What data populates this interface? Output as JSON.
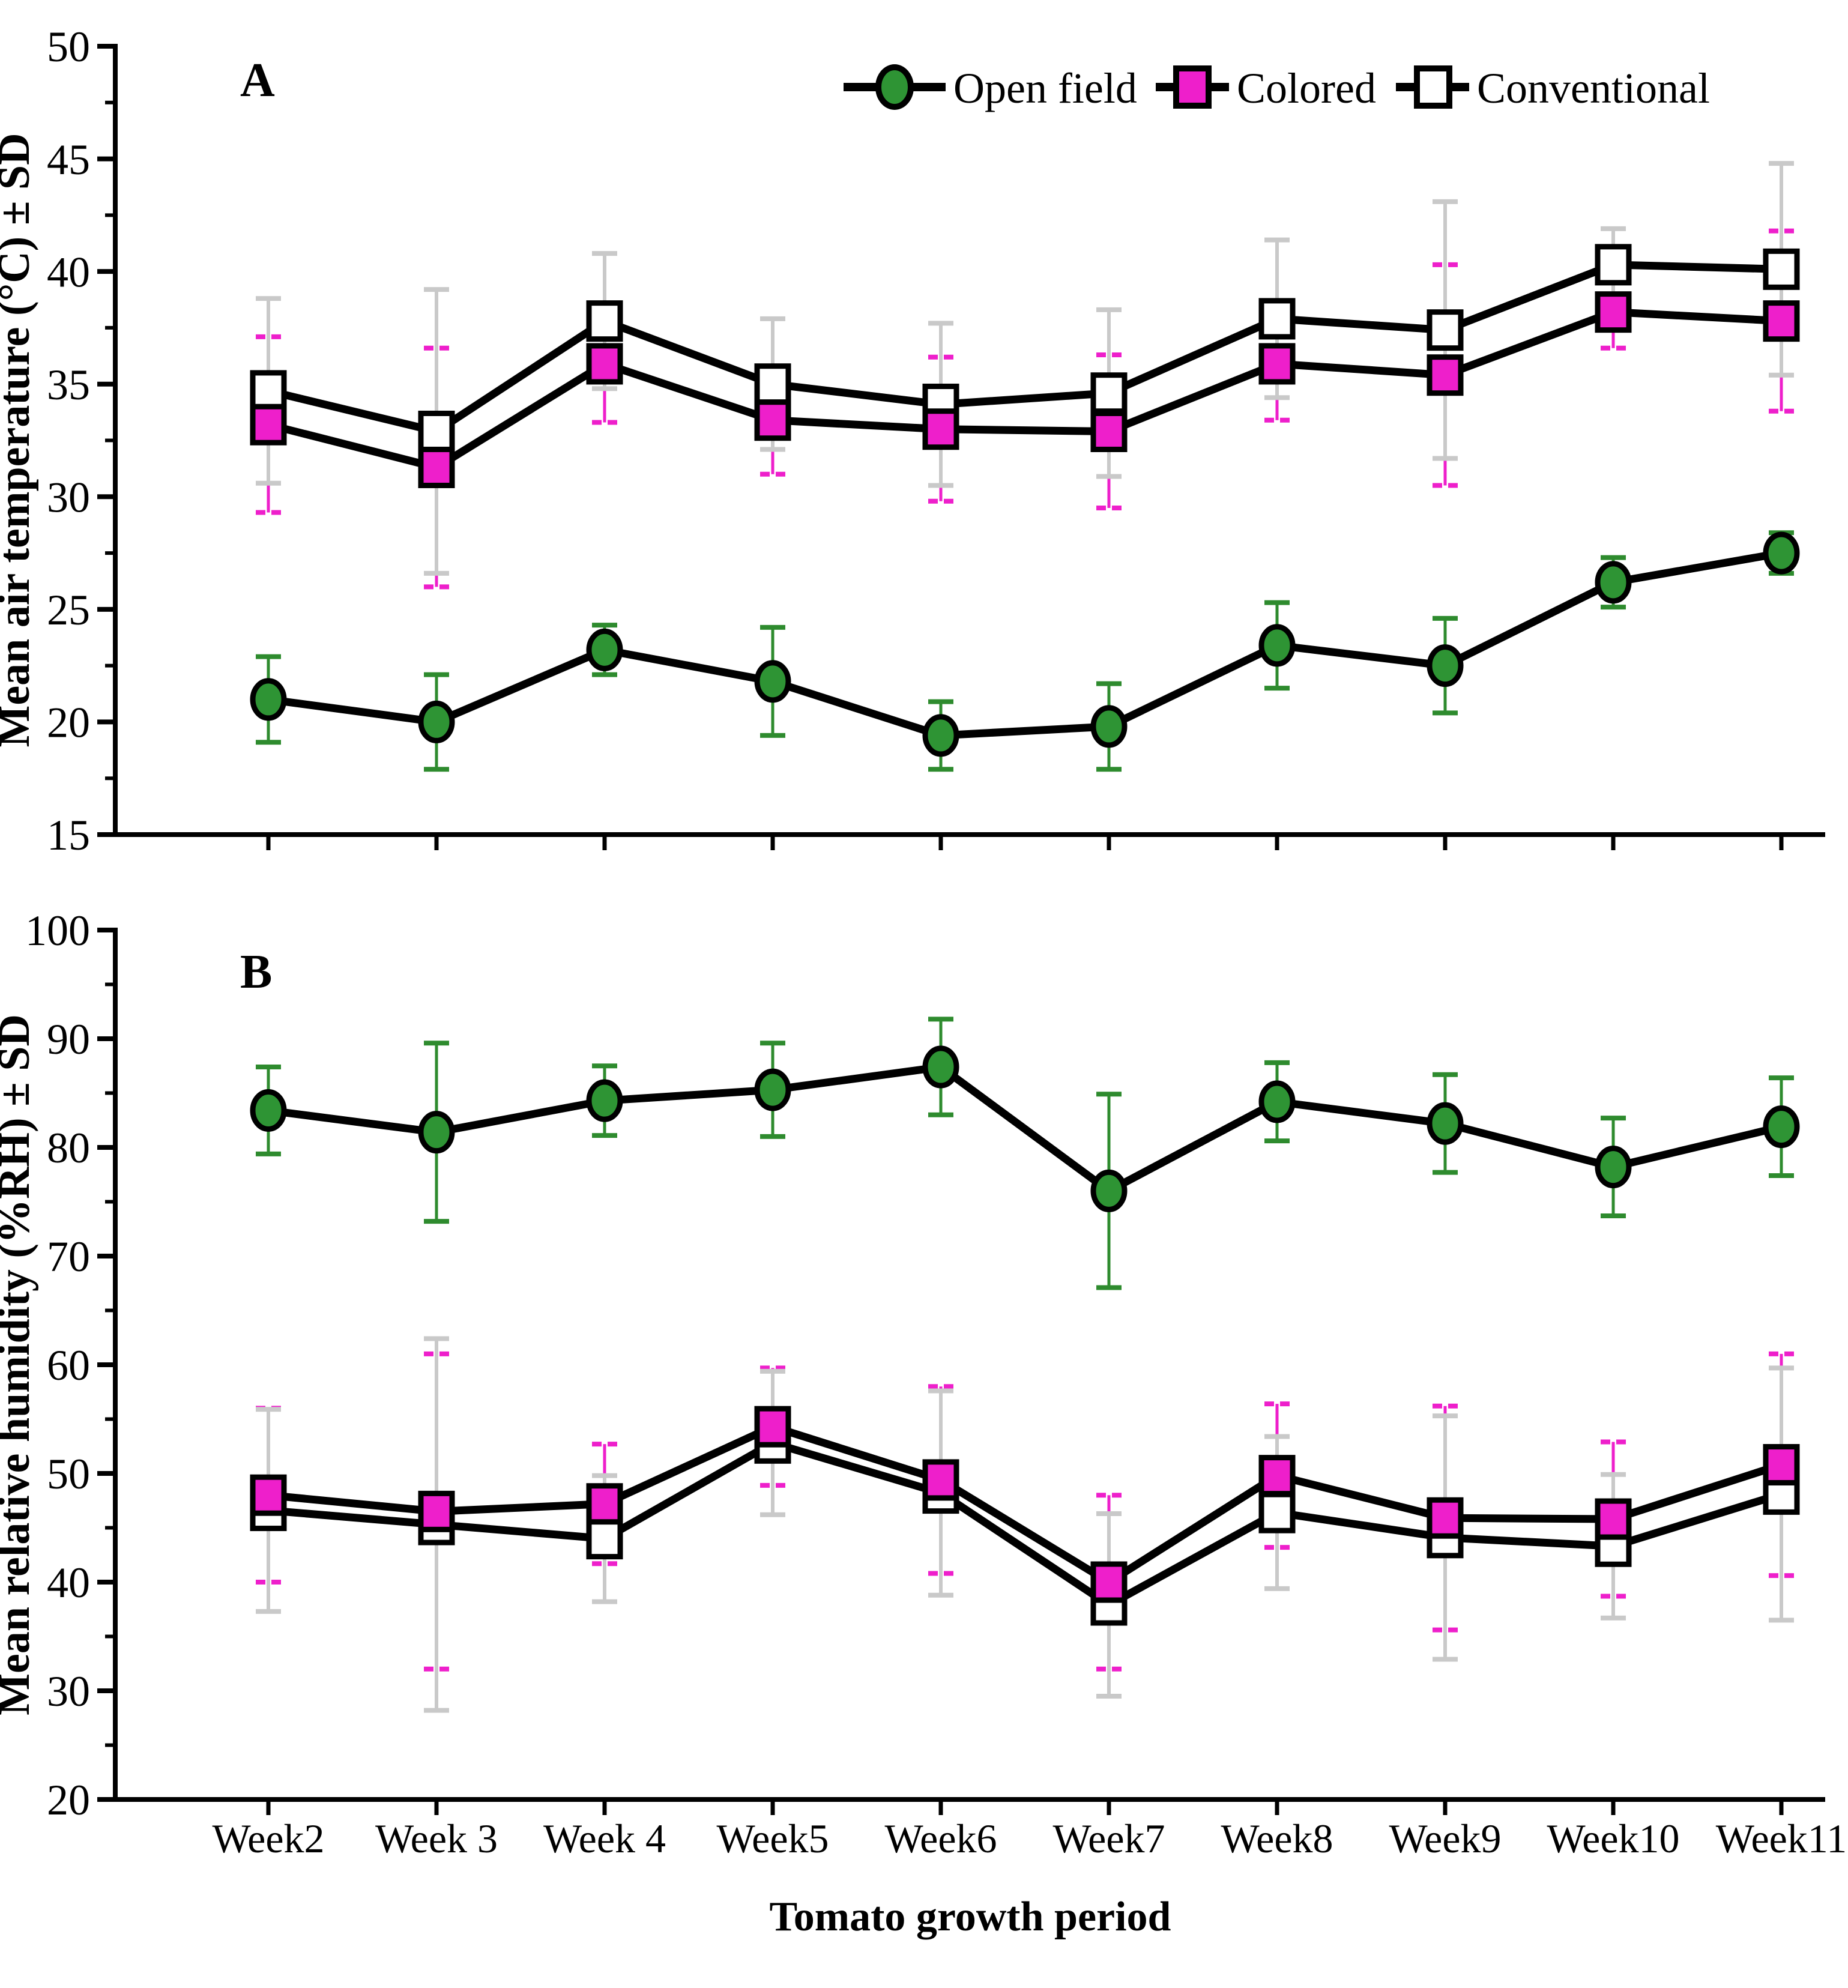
{
  "page": {
    "background": "#ffffff"
  },
  "legend": {
    "items": [
      {
        "label": "Open field",
        "marker": "circle",
        "fill": "#2e9434"
      },
      {
        "label": "Colored",
        "marker": "square",
        "fill": "#ee1fcb"
      },
      {
        "label": "Conventional",
        "marker": "square",
        "fill": "#ffffff"
      }
    ]
  },
  "x_axis": {
    "title": "Tomato growth period",
    "categories": [
      "Week2",
      "Week 3",
      "Week 4",
      "Week5",
      "Week6",
      "Week7",
      "Week8",
      "Week9",
      "Week10",
      "Week11"
    ]
  },
  "style": {
    "series_line_color": "#000000",
    "conventional_whisker_color": "#c9c9c9",
    "colored_color": "#ee1fcb",
    "open_field_color": "#2e9434",
    "open_field_whisker_color": "#2e8b2e"
  },
  "chart_data": [
    {
      "type": "line",
      "panel_label": "A",
      "title": "",
      "xlabel": "Tomato growth period",
      "ylabel": "Mean air temperature (°C) ± SD",
      "ylim": [
        15,
        50
      ],
      "yticks": [
        15,
        20,
        25,
        30,
        35,
        40,
        45,
        50
      ],
      "yminor_step": 2.5,
      "grid": false,
      "legend_position": "top",
      "error_bars": "± SD",
      "categories": [
        "Week2",
        "Week 3",
        "Week 4",
        "Week5",
        "Week6",
        "Week7",
        "Week8",
        "Week9",
        "Week10",
        "Week11"
      ],
      "series": [
        {
          "name": "Conventional",
          "marker": "square",
          "fill": "#ffffff",
          "whisker": "#c9c9c9",
          "cap_style": "solid",
          "values": [
            34.7,
            32.9,
            37.8,
            35.0,
            34.1,
            34.6,
            37.9,
            37.4,
            40.3,
            40.1
          ],
          "sd": [
            4.1,
            6.3,
            3.0,
            2.9,
            3.6,
            3.7,
            3.5,
            5.7,
            1.6,
            4.7
          ]
        },
        {
          "name": "Colored",
          "marker": "square",
          "fill": "#ee1fcb",
          "whisker": "#ee1fcb",
          "cap_style": "dashed",
          "values": [
            33.2,
            31.3,
            35.9,
            33.4,
            33.0,
            32.9,
            35.9,
            35.4,
            38.2,
            37.8
          ],
          "sd": [
            3.9,
            5.3,
            2.6,
            2.4,
            3.2,
            3.4,
            2.5,
            4.9,
            1.6,
            4.0
          ]
        },
        {
          "name": "Open field",
          "marker": "circle",
          "fill": "#2e9434",
          "whisker": "#2e8b2e",
          "cap_style": "solid",
          "values": [
            21.0,
            20.0,
            23.2,
            21.8,
            19.4,
            19.8,
            23.4,
            22.5,
            26.2,
            27.5
          ],
          "sd": [
            1.9,
            2.1,
            1.1,
            2.4,
            1.5,
            1.9,
            1.9,
            2.1,
            1.1,
            0.9
          ]
        }
      ]
    },
    {
      "type": "line",
      "panel_label": "B",
      "title": "",
      "xlabel": "Tomato growth period",
      "ylabel": "Mean relative humidity (%RH) ± SD",
      "ylim": [
        20,
        100
      ],
      "yticks": [
        20,
        30,
        40,
        50,
        60,
        70,
        80,
        90,
        100
      ],
      "yminor_step": 5,
      "grid": false,
      "legend_position": "none",
      "error_bars": "± SD",
      "categories": [
        "Week2",
        "Week 3",
        "Week 4",
        "Week5",
        "Week6",
        "Week7",
        "Week8",
        "Week9",
        "Week10",
        "Week11"
      ],
      "series": [
        {
          "name": "Conventional",
          "marker": "square",
          "fill": "#ffffff",
          "whisker": "#c9c9c9",
          "cap_style": "solid",
          "values": [
            46.6,
            45.3,
            44.0,
            52.8,
            48.2,
            37.9,
            46.4,
            44.1,
            43.3,
            48.1
          ],
          "sd": [
            9.3,
            17.1,
            5.8,
            6.6,
            9.4,
            8.4,
            7.0,
            11.2,
            6.6,
            11.6
          ]
        },
        {
          "name": "Colored",
          "marker": "square",
          "fill": "#ee1fcb",
          "whisker": "#ee1fcb",
          "cap_style": "dashed",
          "values": [
            48.0,
            46.5,
            47.2,
            54.3,
            49.4,
            40.0,
            49.8,
            45.9,
            45.8,
            50.8
          ],
          "sd": [
            8.0,
            14.5,
            5.5,
            5.4,
            8.6,
            8.0,
            6.6,
            10.3,
            7.1,
            10.2
          ]
        },
        {
          "name": "Open field",
          "marker": "circle",
          "fill": "#2e9434",
          "whisker": "#2e8b2e",
          "cap_style": "solid",
          "values": [
            83.4,
            81.4,
            84.3,
            85.3,
            87.4,
            76.0,
            84.2,
            82.2,
            78.2,
            81.9
          ],
          "sd": [
            4.0,
            8.2,
            3.2,
            4.3,
            4.4,
            8.9,
            3.6,
            4.5,
            4.5,
            4.5
          ]
        }
      ]
    }
  ]
}
